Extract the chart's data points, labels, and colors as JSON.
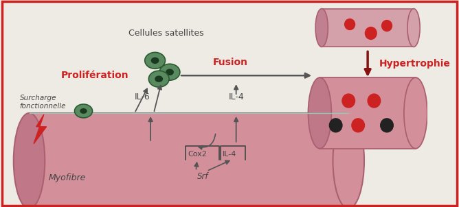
{
  "bg_color": "#eeebe4",
  "myofibre_color": "#d4909a",
  "myofibre_edge": "#aa6070",
  "myofibre_left_color": "#c07888",
  "cell_body_color": "#5a8a60",
  "cell_edge_color": "#2a5a30",
  "cell_nucleus_color": "#1a3a1f",
  "cyl_small_color": "#d4a0aa",
  "cyl_small_edge": "#aa6070",
  "cyl_small_left": "#c08090",
  "cyl_large_color": "#d4909a",
  "cyl_large_edge": "#aa6070",
  "cyl_large_left": "#bf7888",
  "red_dot": "#cc2222",
  "black_dot": "#222222",
  "dark_red_arrow": "#881111",
  "arrow_color": "#555555",
  "red_text": "#cc2222",
  "dark_text": "#444444",
  "border_color": "#cc2222",
  "membrane_line": "#88ccbb",
  "lightning_color": "#cc2222",
  "label_proliferation": "Prolifération",
  "label_cellules": "Cellules satellites",
  "label_fusion": "Fusion",
  "label_hypertrophie": "Hypertrophie",
  "label_il6": "IL-6",
  "label_il4": "IL-4",
  "label_srf": "Srf",
  "label_cox2": "Cox2",
  "label_il4_box": "IL-4",
  "label_myofibre": "Myofibre",
  "label_surcharge1": "Surcharge",
  "label_surcharge2": "fonctionnelle"
}
